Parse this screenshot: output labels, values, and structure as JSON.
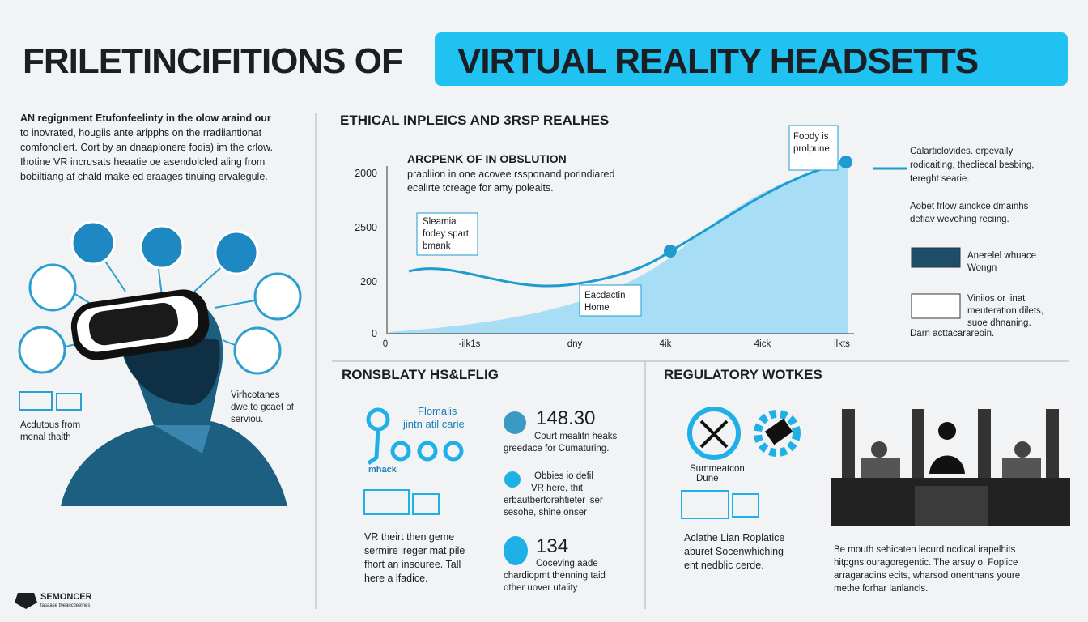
{
  "header": {
    "title_left": "FRILETINCIFITIONS OF",
    "title_right": "VIRTUAL REALITY HEADSETTS"
  },
  "intro": {
    "lines": [
      "AN regignment Etufonfeelinty in the olow araind our",
      "to inovrated, hougiis ante aripphs on the rradiiantionat",
      "comfoncliert. Cort by an dnaaplonere fodis) im the crlow.",
      "Ihotine VR incrusats heaatie oe asendolcled aling from",
      "bobiltiang af chald make ed eraages tinuing ervalegule."
    ],
    "caption_left": [
      "Acdutous from",
      "menal thalth"
    ],
    "caption_right": [
      "Virhcotanes",
      "dwe to gcaet of",
      "serviou."
    ]
  },
  "trend": {
    "title": "ETHICAL INPLEICS AND 3RSP REALHES",
    "subtitle": "ARCPENK OF IN OBSLUTION",
    "note": [
      "prapliion in one acovee rssponand porlndiared",
      "ecalirte tcreage for amy poleaits."
    ],
    "y_labels": [
      "2000",
      "2500",
      "200",
      "0"
    ],
    "x_labels": [
      "0",
      "-ilk1s",
      "dny",
      "4ik",
      "4ick",
      "ilkts"
    ],
    "callout_top": [
      "Foody is",
      "prolpune"
    ],
    "callout_left": [
      "Sleamia",
      "fodey spart",
      "bmank"
    ],
    "callout_mid": [
      "Eacdactin",
      "Home"
    ]
  },
  "side": {
    "block1": [
      "Calarticlovides. erpevally",
      "rodicaiting, thecliecal besbing,",
      "tereght searie."
    ],
    "block2": [
      "Aobet frlow ainckce dmainhs",
      "defiav wevohing reciing."
    ],
    "item1": [
      "Anerelel whuace",
      "Wongn"
    ],
    "item2": [
      "Viniios or linat",
      "meuteration dilets,",
      "suoe dhnaning."
    ],
    "footer": "Darn acttacarareoin."
  },
  "responsibility": {
    "title": "RONSBLATY HS&LFLIG",
    "badge": [
      "Flomalis",
      "jintn atil carie"
    ],
    "badge_foot": "mhack",
    "stat1": "148.30",
    "stat1_text": [
      "Court mealitn heaks",
      "greedace for Cumaturing."
    ],
    "stat2_text": [
      "Obbies io defil",
      "VR here, thit",
      "erbautbertorahtieter lser",
      "sesohe, shine onser"
    ],
    "stat3": "134",
    "stat3_text": [
      "Coceving aade",
      "chardiopmt thenning taid",
      "other uover utality"
    ],
    "body": [
      "VR theirt then geme",
      "sermire ireger mat pile",
      "fhort an insouree. Tall",
      "here a lfadice."
    ]
  },
  "regulatory": {
    "title": "REGULATORY WOTKES",
    "icon_label": [
      "Summeatcon",
      "Dune"
    ],
    "body": [
      "Aclathe Lian Roplatice",
      "aburet Socenwhiching",
      "ent nedblic cerde."
    ],
    "court_text": [
      "Be mouth sehicaten lecurd ncdical irapelhits",
      "hitpgns ouragoregentic. The arsuy o, Foplice",
      "arragaradins ecits, wharsod onenthans youre",
      "methe forhar lanlancls."
    ]
  },
  "logo": {
    "name": "SEMONCER",
    "tagline": "fasaase theanctleelnes"
  }
}
